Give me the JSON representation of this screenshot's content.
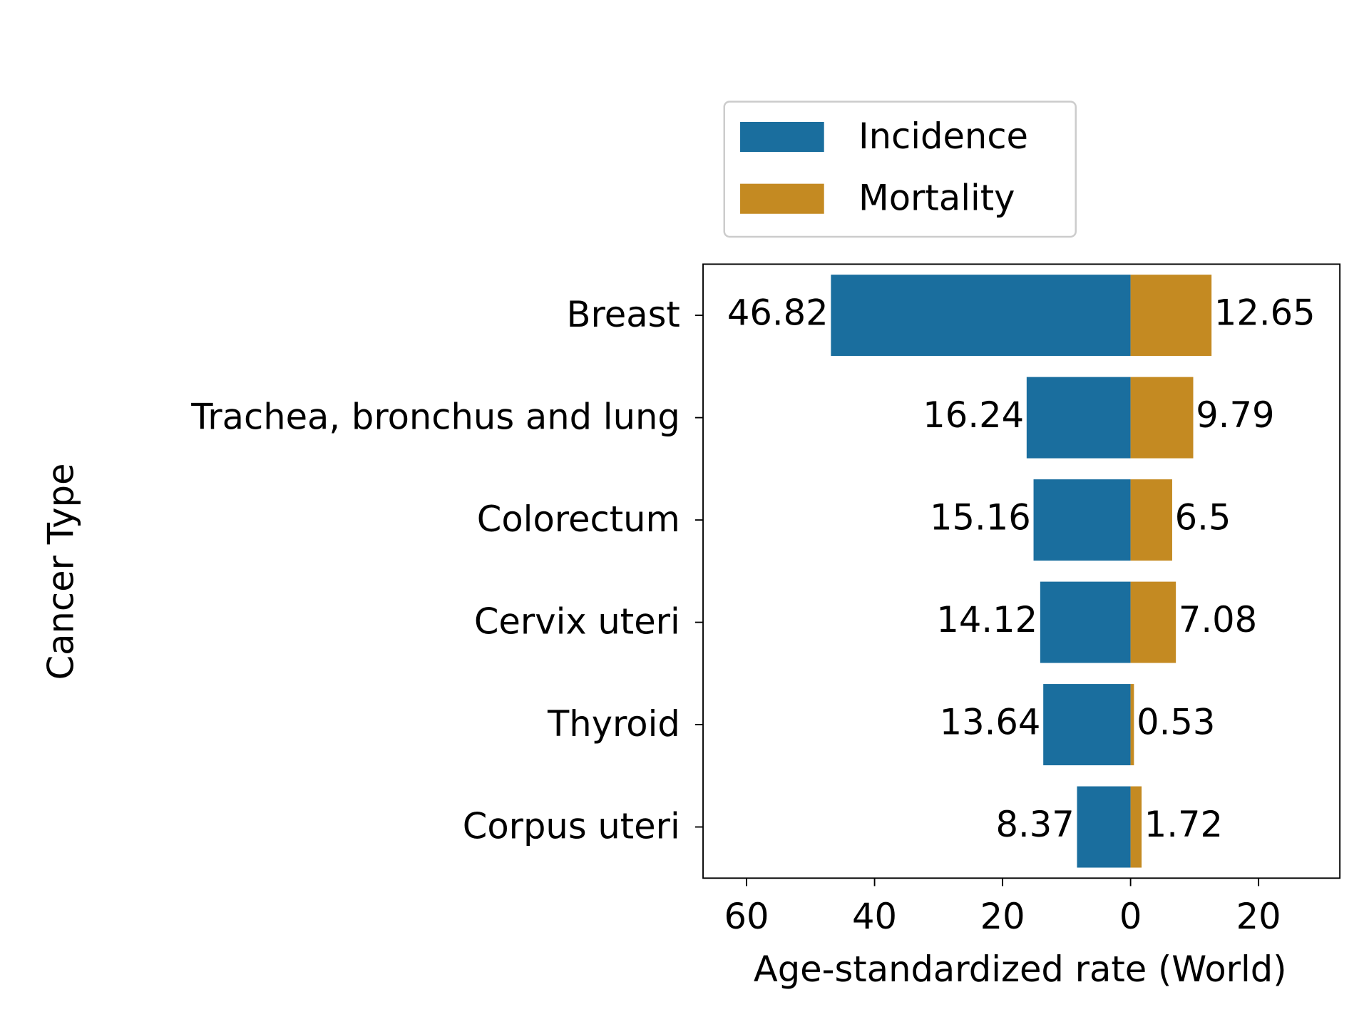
{
  "chart_data": {
    "type": "diverging-bar",
    "xlabel": "Age-standardized rate (World)",
    "ylabel": "Cancer Type",
    "categories": [
      "Breast",
      "Trachea, bronchus and lung",
      "Colorectum",
      "Cervix uteri",
      "Thyroid",
      "Corpus uteri"
    ],
    "series": [
      {
        "name": "Incidence",
        "color": "#1a6e9e",
        "values": [
          -46.82,
          -16.24,
          -15.16,
          -14.12,
          -13.64,
          -8.37
        ],
        "value_labels": [
          "46.82",
          "16.24",
          "15.16",
          "14.12",
          "13.64",
          "8.37"
        ]
      },
      {
        "name": "Mortality",
        "color": "#c48a22",
        "values": [
          12.65,
          9.79,
          6.5,
          7.08,
          0.53,
          1.72
        ]
      }
    ],
    "xlim": [
      -66.8,
      32.7
    ],
    "xticks": [
      {
        "value": -60,
        "label": "60"
      },
      {
        "value": -40,
        "label": "40"
      },
      {
        "value": -20,
        "label": "20"
      },
      0,
      20
    ],
    "legend": "top"
  }
}
